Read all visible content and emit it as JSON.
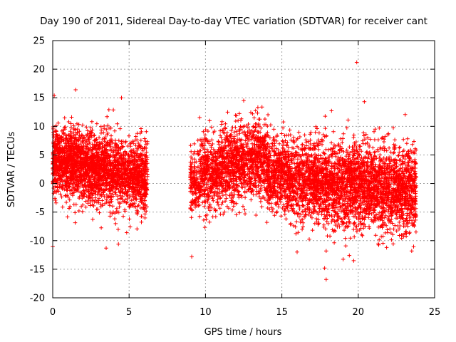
{
  "chart_data": {
    "type": "scatter",
    "title": "Day 190 of 2011, Sidereal Day-to-day VTEC variation (SDTVAR) for receiver cant",
    "xlabel": "GPS time / hours",
    "ylabel": "SDTVAR / TECUs",
    "xlim": [
      0,
      25
    ],
    "ylim": [
      -20,
      25
    ],
    "xticks": [
      0,
      5,
      10,
      15,
      20,
      25
    ],
    "yticks": [
      -20,
      -15,
      -10,
      -5,
      0,
      5,
      10,
      15,
      20,
      25
    ],
    "grid": true,
    "marker": "+",
    "color": "#ff0000",
    "series": [
      {
        "name": "SDTVAR",
        "clusters": [
          {
            "x_range": [
              0.0,
              6.2
            ],
            "mean_start": 4.0,
            "mean_end": 1.0,
            "spread": 3.0,
            "count": 2600
          },
          {
            "x_range": [
              9.0,
              11.0
            ],
            "mean_start": 0.5,
            "mean_end": 2.0,
            "spread": 3.2,
            "count": 600
          },
          {
            "x_range": [
              11.0,
              14.0
            ],
            "mean_start": 3.0,
            "mean_end": 4.5,
            "spread": 3.3,
            "count": 1000
          },
          {
            "x_range": [
              14.0,
              17.0
            ],
            "mean_start": 2.0,
            "mean_end": 0.0,
            "spread": 3.4,
            "count": 1000
          },
          {
            "x_range": [
              17.0,
              23.8
            ],
            "mean_start": 0.0,
            "mean_end": -1.0,
            "spread": 3.6,
            "count": 2600
          }
        ],
        "outliers": [
          {
            "x": 19.9,
            "y": 21.2
          },
          {
            "x": 1.5,
            "y": 16.4
          },
          {
            "x": 0.1,
            "y": 15.4
          },
          {
            "x": 4.5,
            "y": 15.0
          },
          {
            "x": 12.5,
            "y": 14.5
          },
          {
            "x": 20.4,
            "y": 14.3
          },
          {
            "x": 9.1,
            "y": -12.8
          },
          {
            "x": 17.9,
            "y": -16.8
          },
          {
            "x": 17.8,
            "y": -14.8
          },
          {
            "x": 19.7,
            "y": -13.5
          },
          {
            "x": 3.5,
            "y": -11.3
          },
          {
            "x": 4.3,
            "y": -10.6
          },
          {
            "x": 16.0,
            "y": -12.0
          },
          {
            "x": 23.5,
            "y": -11.8
          },
          {
            "x": 0.0,
            "y": -11.0
          },
          {
            "x": 17.9,
            "y": -11.8
          }
        ]
      }
    ]
  }
}
